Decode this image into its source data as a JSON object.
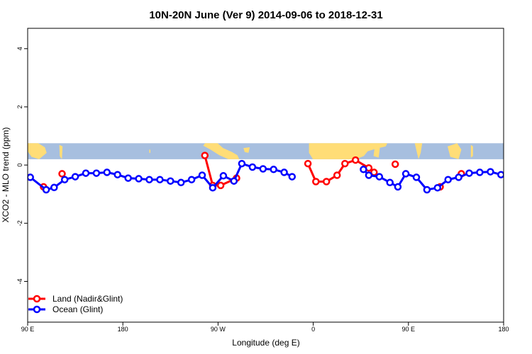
{
  "chart_data": {
    "type": "line",
    "title": "10N-20N June (Ver 9)   2014-09-06 to 2018-12-31",
    "xlabel": "Longitude (deg E)",
    "ylabel": "XCO2 - MLO trend (ppm)",
    "xlim": [
      90,
      540
    ],
    "ylim": [
      -5.4,
      4.7
    ],
    "x_ticks": [
      {
        "x": 90,
        "label": "90 E"
      },
      {
        "x": 180,
        "label": "180"
      },
      {
        "x": 270,
        "label": "90 W"
      },
      {
        "x": 360,
        "label": "0"
      },
      {
        "x": 450,
        "label": "90 E"
      },
      {
        "x": 540,
        "label": "180"
      }
    ],
    "y_ticks": [
      -4,
      -2,
      0,
      2,
      4
    ],
    "map_band": {
      "y_min": 0.2,
      "y_max": 0.75,
      "ocean_color": "#a7bfdf",
      "land_color": "#ffdd77"
    },
    "legend_position": "bottom-left",
    "series": [
      {
        "name": "Land (Nadir&Glint)",
        "color": "#ff0000",
        "segments": [
          [
            [
              105,
              -0.75
            ]
          ],
          [
            [
              122.5,
              -0.3
            ]
          ],
          [
            [
              257.5,
              0.33
            ],
            [
              265,
              -0.7
            ],
            [
              272.5,
              -0.7
            ],
            [
              287.5,
              -0.45
            ]
          ],
          [
            [
              355,
              0.05
            ],
            [
              362.5,
              -0.57
            ],
            [
              372.5,
              -0.57
            ],
            [
              382.5,
              -0.35
            ],
            [
              390,
              0.05
            ],
            [
              400,
              0.17
            ],
            [
              412.5,
              -0.1
            ],
            [
              417.5,
              -0.25
            ]
          ],
          [
            [
              437.5,
              0.03
            ]
          ],
          [
            [
              480,
              -0.75
            ]
          ],
          [
            [
              500,
              -0.3
            ]
          ]
        ]
      },
      {
        "name": "Ocean (Glint)",
        "color": "#0000ff",
        "segments": [
          [
            [
              92.5,
              -0.42
            ],
            [
              107.5,
              -0.85
            ],
            [
              115,
              -0.77
            ],
            [
              125,
              -0.5
            ],
            [
              135,
              -0.4
            ],
            [
              145,
              -0.28
            ],
            [
              155,
              -0.28
            ],
            [
              165,
              -0.25
            ],
            [
              175,
              -0.33
            ],
            [
              185,
              -0.45
            ],
            [
              195,
              -0.47
            ],
            [
              205,
              -0.5
            ],
            [
              215,
              -0.5
            ],
            [
              225,
              -0.55
            ],
            [
              235,
              -0.6
            ],
            [
              245,
              -0.5
            ],
            [
              255,
              -0.35
            ],
            [
              265,
              -0.78
            ],
            [
              275,
              -0.37
            ],
            [
              285,
              -0.55
            ],
            [
              292.5,
              0.05
            ],
            [
              302.5,
              -0.07
            ],
            [
              312.5,
              -0.13
            ],
            [
              322.5,
              -0.15
            ],
            [
              332.5,
              -0.25
            ],
            [
              340,
              -0.4
            ]
          ],
          [
            [
              407.5,
              -0.15
            ],
            [
              412.5,
              -0.35
            ],
            [
              422.5,
              -0.4
            ],
            [
              432.5,
              -0.6
            ],
            [
              440,
              -0.75
            ],
            [
              447.5,
              -0.3
            ],
            [
              457.5,
              -0.42
            ],
            [
              467.5,
              -0.85
            ],
            [
              477.5,
              -0.78
            ],
            [
              487.5,
              -0.5
            ],
            [
              497.5,
              -0.42
            ],
            [
              507.5,
              -0.28
            ],
            [
              517.5,
              -0.25
            ],
            [
              527.5,
              -0.23
            ],
            [
              537.5,
              -0.33
            ]
          ]
        ]
      }
    ]
  }
}
